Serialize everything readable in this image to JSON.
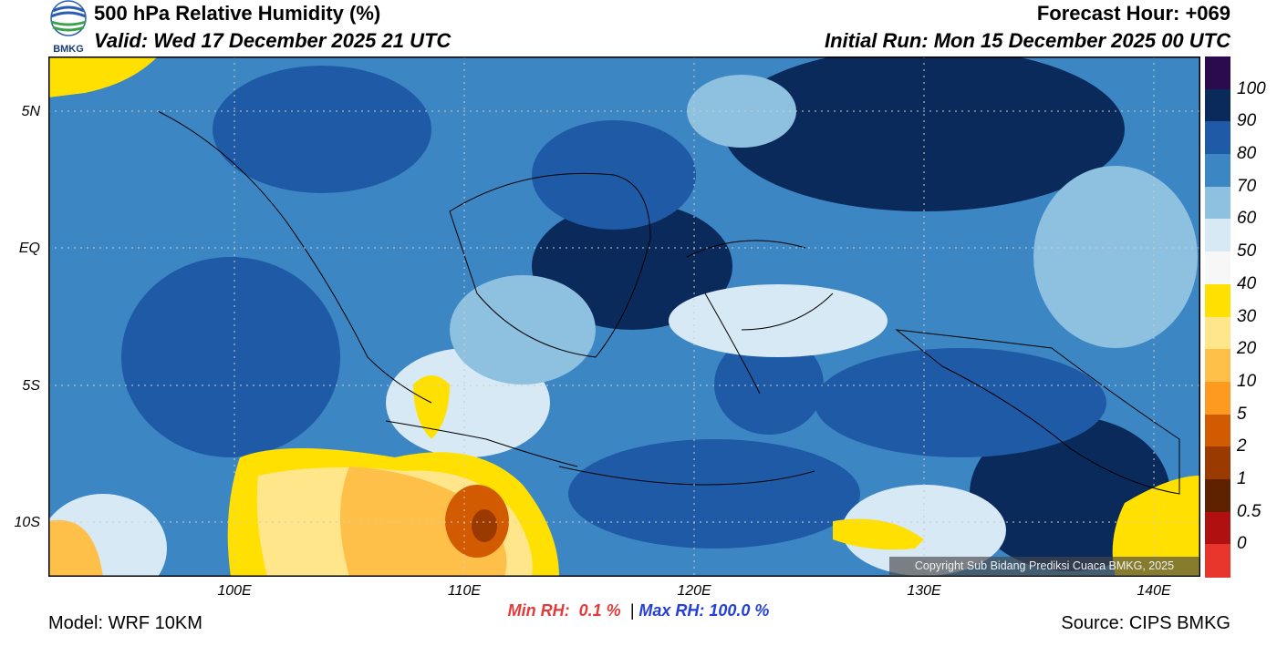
{
  "header": {
    "title": "500 hPa Relative Humidity (%)",
    "valid": "Valid: Wed 17 December 2025 21 UTC",
    "forecast_hour": "Forecast Hour: +069",
    "initial_run": "Initial Run: Mon 15 December 2025 00 UTC",
    "logo_text": "BMKG"
  },
  "colorbar": {
    "labels": [
      "100",
      "90",
      "80",
      "70",
      "60",
      "50",
      "40",
      "30",
      "20",
      "10",
      "5",
      "2",
      "1",
      "0.5",
      "0"
    ],
    "colors": [
      "#2b0a4e",
      "#0b2a5c",
      "#1f5aa6",
      "#3c86c4",
      "#8ec0e0",
      "#d6e9f5",
      "#f7f7f7",
      "#ffe000",
      "#ffe68a",
      "#ffc04a",
      "#ff9a20",
      "#d25a00",
      "#9a3a00",
      "#5e2200",
      "#b01010",
      "#e8352b"
    ]
  },
  "axes": {
    "lat_labels": [
      "5N",
      "EQ",
      "5S",
      "10S"
    ],
    "lon_labels": [
      "100E",
      "110E",
      "120E",
      "130E",
      "140E"
    ]
  },
  "stats": {
    "min_label": "Min RH:",
    "min_value": "0.1 %",
    "separator": "|",
    "max_label": "Max RH:",
    "max_value": "100.0 %"
  },
  "footer": {
    "model": "Model: WRF 10KM",
    "source": "Source: CIPS BMKG",
    "copyright": "Copyright Sub Bidang Prediksi Cuaca BMKG, 2025"
  }
}
